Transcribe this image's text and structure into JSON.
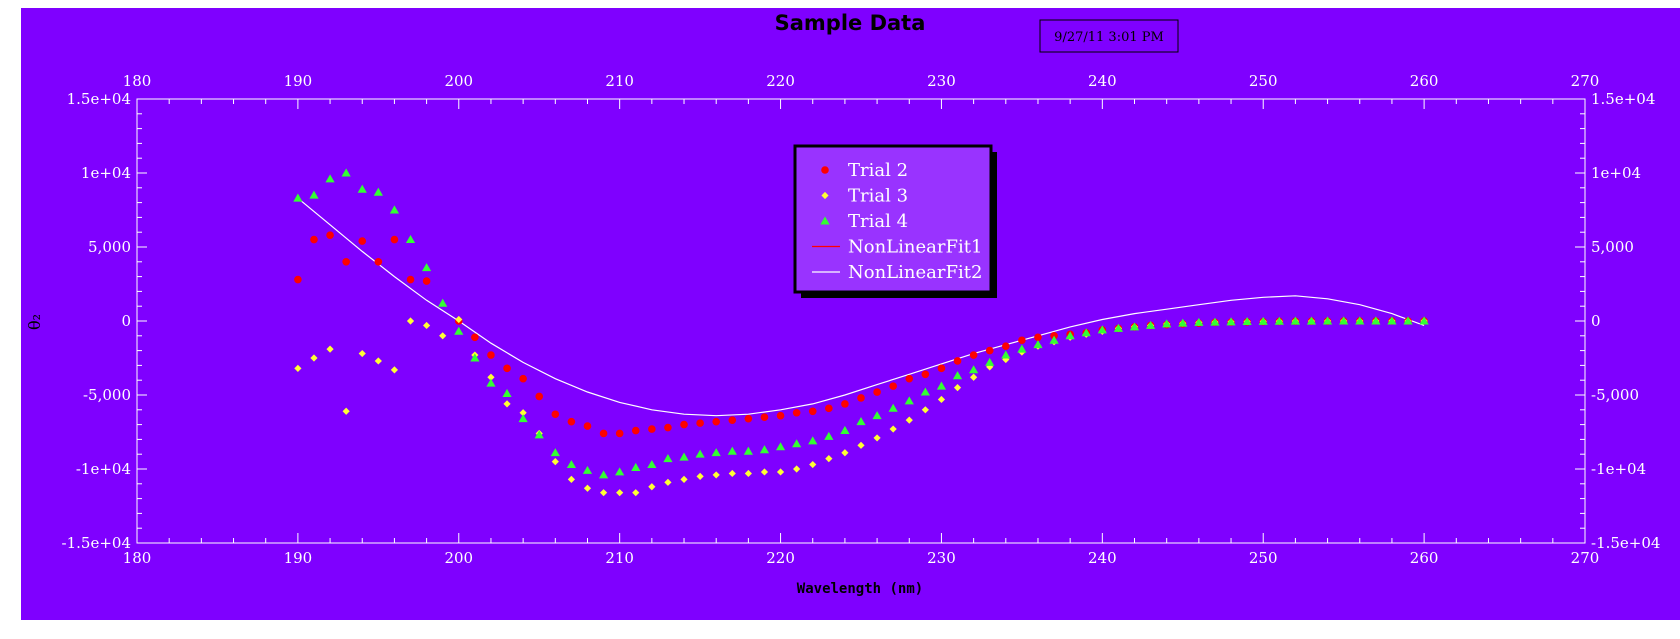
{
  "colors": {
    "background": "#7f00ff",
    "legend_bg": "#9933ff",
    "axis": "#ffffff",
    "trial2": "#ff0000",
    "trial3": "#ffff33",
    "trial4": "#33ff33",
    "fit1": "#ff0000",
    "fit2": "#ffffff"
  },
  "timestamp": "9/27/11 3:01 PM",
  "chart_data": {
    "type": "scatter",
    "title": "Sample Data",
    "xlabel": "Wavelength (nm)",
    "ylabel": "θ₂",
    "xlim": [
      180,
      270
    ],
    "ylim": [
      -15000,
      15000
    ],
    "x_ticks": [
      180,
      190,
      200,
      210,
      220,
      230,
      240,
      250,
      260,
      270
    ],
    "x_tick_labels": [
      "180",
      "190",
      "200",
      "210",
      "220",
      "230",
      "240",
      "250",
      "260",
      "270"
    ],
    "y_ticks": [
      -15000,
      -10000,
      -5000,
      0,
      5000,
      10000,
      15000
    ],
    "y_tick_labels": [
      "-1.5e+04",
      "-1e+04",
      "-5,000",
      "0",
      "5,000",
      "1e+04",
      "1.5e+04"
    ],
    "legend_position": "top-center",
    "series": [
      {
        "name": "Trial 2",
        "marker": "circle",
        "color": "#ff0000",
        "x": [
          190,
          191,
          192,
          193,
          194,
          195,
          196,
          197,
          198,
          200,
          201,
          202,
          203,
          204,
          205,
          206,
          207,
          208,
          209,
          210,
          211,
          212,
          213,
          214,
          215,
          216,
          217,
          218,
          219,
          220,
          221,
          222,
          223,
          224,
          225,
          226,
          227,
          228,
          229,
          230,
          231,
          232,
          233,
          234,
          235,
          236,
          237,
          238,
          239,
          240,
          241,
          242,
          243,
          244,
          245,
          246,
          247,
          248,
          249,
          250,
          251,
          252,
          253,
          254,
          255,
          256,
          257,
          258,
          259,
          260
        ],
        "y": [
          2800,
          5500,
          5800,
          4000,
          5400,
          4000,
          5500,
          2800,
          2700,
          0,
          -1100,
          -2300,
          -3200,
          -3900,
          -5100,
          -6300,
          -6800,
          -7100,
          -7600,
          -7600,
          -7400,
          -7300,
          -7200,
          -7000,
          -6900,
          -6800,
          -6700,
          -6600,
          -6500,
          -6400,
          -6200,
          -6100,
          -5900,
          -5600,
          -5200,
          -4800,
          -4400,
          -3900,
          -3600,
          -3200,
          -2700,
          -2300,
          -2000,
          -1700,
          -1300,
          -1100,
          -1000,
          -900,
          -800,
          -600,
          -500,
          -400,
          -300,
          -250,
          -200,
          -150,
          -100,
          -80,
          -60,
          -50,
          -30,
          -20,
          -10,
          -10,
          0,
          0,
          0,
          0,
          0,
          0
        ]
      },
      {
        "name": "Trial 3",
        "marker": "diamond",
        "color": "#ffff33",
        "x": [
          190,
          191,
          192,
          193,
          194,
          195,
          196,
          197,
          198,
          199,
          200,
          201,
          202,
          203,
          204,
          205,
          206,
          207,
          208,
          209,
          210,
          211,
          212,
          213,
          214,
          215,
          216,
          217,
          218,
          219,
          220,
          221,
          222,
          223,
          224,
          225,
          226,
          227,
          228,
          229,
          230,
          231,
          232,
          233,
          234,
          235,
          236,
          237,
          238,
          239,
          240,
          241,
          242,
          243,
          244,
          245,
          246,
          247,
          248,
          249,
          250,
          251,
          252,
          253,
          254,
          255,
          256,
          257,
          258,
          259,
          260
        ],
        "y": [
          -3200,
          -2500,
          -1900,
          -6100,
          -2200,
          -2700,
          -3300,
          0,
          -300,
          -1000,
          100,
          -2300,
          -3800,
          -5600,
          -6200,
          -7600,
          -9500,
          -10700,
          -11300,
          -11600,
          -11600,
          -11600,
          -11200,
          -10900,
          -10700,
          -10500,
          -10400,
          -10300,
          -10300,
          -10200,
          -10200,
          -10000,
          -9700,
          -9300,
          -8900,
          -8400,
          -7900,
          -7300,
          -6700,
          -6000,
          -5300,
          -4500,
          -3800,
          -3100,
          -2600,
          -2100,
          -1700,
          -1400,
          -1100,
          -900,
          -700,
          -500,
          -400,
          -300,
          -200,
          -150,
          -100,
          -80,
          -60,
          -40,
          -30,
          -20,
          -10,
          -10,
          0,
          0,
          0,
          0,
          0,
          0,
          0
        ]
      },
      {
        "name": "Trial 4",
        "marker": "triangle",
        "color": "#33ff33",
        "x": [
          190,
          191,
          192,
          193,
          194,
          195,
          196,
          197,
          198,
          199,
          200,
          201,
          202,
          203,
          204,
          205,
          206,
          207,
          208,
          209,
          210,
          211,
          212,
          213,
          214,
          215,
          216,
          217,
          218,
          219,
          220,
          221,
          222,
          223,
          224,
          225,
          226,
          227,
          228,
          229,
          230,
          231,
          232,
          233,
          234,
          235,
          236,
          237,
          238,
          239,
          240,
          241,
          242,
          243,
          244,
          245,
          246,
          247,
          248,
          249,
          250,
          251,
          252,
          253,
          254,
          255,
          256,
          257,
          258,
          259,
          260
        ],
        "y": [
          8300,
          8500,
          9600,
          10000,
          8900,
          8700,
          7500,
          5500,
          3600,
          1200,
          -700,
          -2500,
          -4200,
          -4900,
          -6600,
          -7700,
          -8900,
          -9700,
          -10100,
          -10400,
          -10200,
          -9900,
          -9700,
          -9300,
          -9200,
          -9000,
          -8900,
          -8800,
          -8800,
          -8700,
          -8500,
          -8300,
          -8100,
          -7800,
          -7400,
          -6800,
          -6400,
          -5900,
          -5400,
          -4800,
          -4400,
          -3700,
          -3300,
          -2800,
          -2300,
          -1900,
          -1600,
          -1300,
          -1000,
          -800,
          -600,
          -500,
          -400,
          -300,
          -200,
          -150,
          -100,
          -80,
          -60,
          -40,
          -30,
          -20,
          -10,
          -10,
          0,
          0,
          0,
          0,
          0,
          0,
          0
        ]
      },
      {
        "name": "NonLinearFit1",
        "marker": "line",
        "color": "#ff0000",
        "x": [],
        "y": []
      },
      {
        "name": "NonLinearFit2",
        "marker": "line",
        "color": "#ffffff",
        "x": [
          190,
          192,
          194,
          196,
          198,
          200,
          202,
          204,
          206,
          208,
          210,
          212,
          214,
          216,
          218,
          220,
          222,
          224,
          226,
          228,
          230,
          232,
          234,
          236,
          238,
          240,
          242,
          244,
          246,
          248,
          250,
          252,
          254,
          256,
          258,
          260
        ],
        "y": [
          8300,
          6500,
          4700,
          3000,
          1400,
          0,
          -1500,
          -2800,
          -3900,
          -4800,
          -5500,
          -6000,
          -6300,
          -6400,
          -6300,
          -6000,
          -5600,
          -5000,
          -4300,
          -3600,
          -2900,
          -2200,
          -1600,
          -1000,
          -400,
          100,
          500,
          800,
          1100,
          1400,
          1600,
          1700,
          1500,
          1100,
          500,
          -300
        ]
      }
    ]
  }
}
